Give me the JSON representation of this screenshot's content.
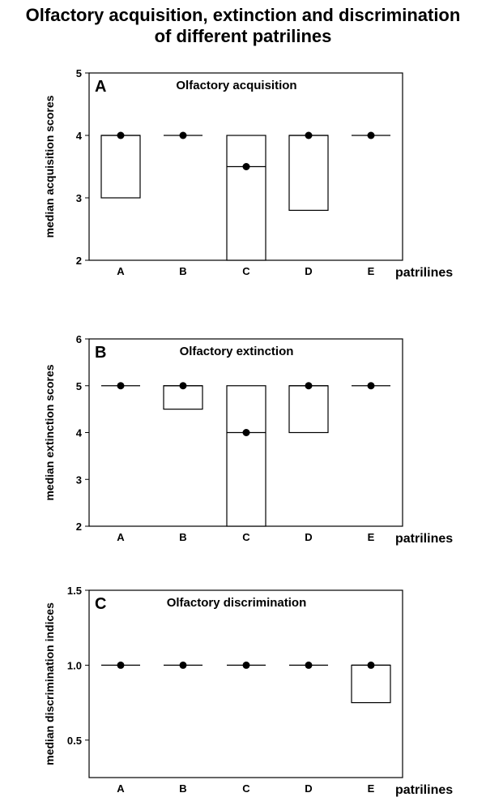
{
  "figure": {
    "title_line1": "Olfactory acquisition, extinction and discrimination",
    "title_line2": "of  different patrilines"
  },
  "chart_data": [
    {
      "type": "box",
      "panel_label": "A",
      "title": "Olfactory acquisition",
      "ylabel": "median acquisition scores",
      "xlabel": "patrilines",
      "categories": [
        "A",
        "B",
        "C",
        "D",
        "E"
      ],
      "ylim": [
        2,
        5
      ],
      "yticks": [
        "2",
        "3",
        "4",
        "5"
      ],
      "medians": [
        4,
        4,
        3.5,
        4,
        4
      ],
      "q1": [
        3,
        4,
        2,
        2.8,
        4
      ],
      "q3": [
        4,
        4,
        4,
        4,
        4
      ]
    },
    {
      "type": "box",
      "panel_label": "B",
      "title": "Olfactory extinction",
      "ylabel": "median extinction scores",
      "xlabel": "patrilines",
      "categories": [
        "A",
        "B",
        "C",
        "D",
        "E"
      ],
      "ylim": [
        2,
        6
      ],
      "yticks": [
        "2",
        "3",
        "4",
        "5",
        "6"
      ],
      "medians": [
        5,
        5,
        4,
        5,
        5
      ],
      "q1": [
        5,
        4.5,
        2,
        4,
        5
      ],
      "q3": [
        5,
        5,
        5,
        5,
        5
      ]
    },
    {
      "type": "box",
      "panel_label": "C",
      "title": "Olfactory discrimination",
      "ylabel": "median discrimination indices",
      "xlabel": "patrilines",
      "categories": [
        "A",
        "B",
        "C",
        "D",
        "E"
      ],
      "ylim": [
        0.25,
        1.5
      ],
      "yticks": [
        "0.5",
        "1.0",
        "1.5"
      ],
      "medians": [
        1.0,
        1.0,
        1.0,
        1.0,
        1.0
      ],
      "q1": [
        1.0,
        1.0,
        1.0,
        1.0,
        0.75
      ],
      "q3": [
        1.0,
        1.0,
        1.0,
        1.0,
        1.0
      ]
    }
  ]
}
